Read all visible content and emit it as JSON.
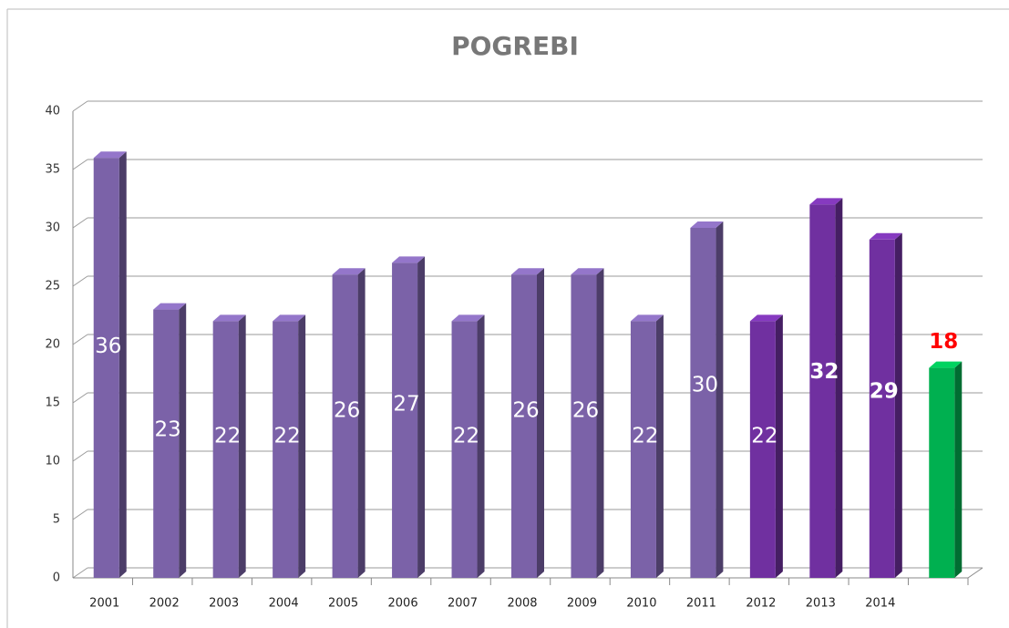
{
  "chart_data": {
    "type": "bar3d",
    "title": "POGREBI",
    "categories": [
      "2001",
      "2002",
      "2003",
      "2004",
      "2005",
      "2006",
      "2007",
      "2008",
      "2009",
      "2010",
      "2011",
      "2012",
      "2013",
      "2014",
      null
    ],
    "values": [
      36,
      23,
      22,
      22,
      26,
      27,
      22,
      26,
      26,
      22,
      30,
      22,
      32,
      29,
      18
    ],
    "colors": [
      "#7b62a8",
      "#7b62a8",
      "#7b62a8",
      "#7b62a8",
      "#7b62a8",
      "#7b62a8",
      "#7b62a8",
      "#7b62a8",
      "#7b62a8",
      "#7b62a8",
      "#7b62a8",
      "#7030a0",
      "#7030a0",
      "#7030a0",
      "#00b050"
    ],
    "label_colors": [
      "#ffffff",
      "#ffffff",
      "#ffffff",
      "#ffffff",
      "#ffffff",
      "#ffffff",
      "#ffffff",
      "#ffffff",
      "#ffffff",
      "#ffffff",
      "#ffffff",
      "#ffffff",
      "#ffffff",
      "#ffffff",
      "#ff0000"
    ],
    "ylim": [
      0,
      40
    ],
    "yticks": [
      0,
      5,
      10,
      15,
      20,
      25,
      30,
      35,
      40
    ],
    "grid": true
  }
}
